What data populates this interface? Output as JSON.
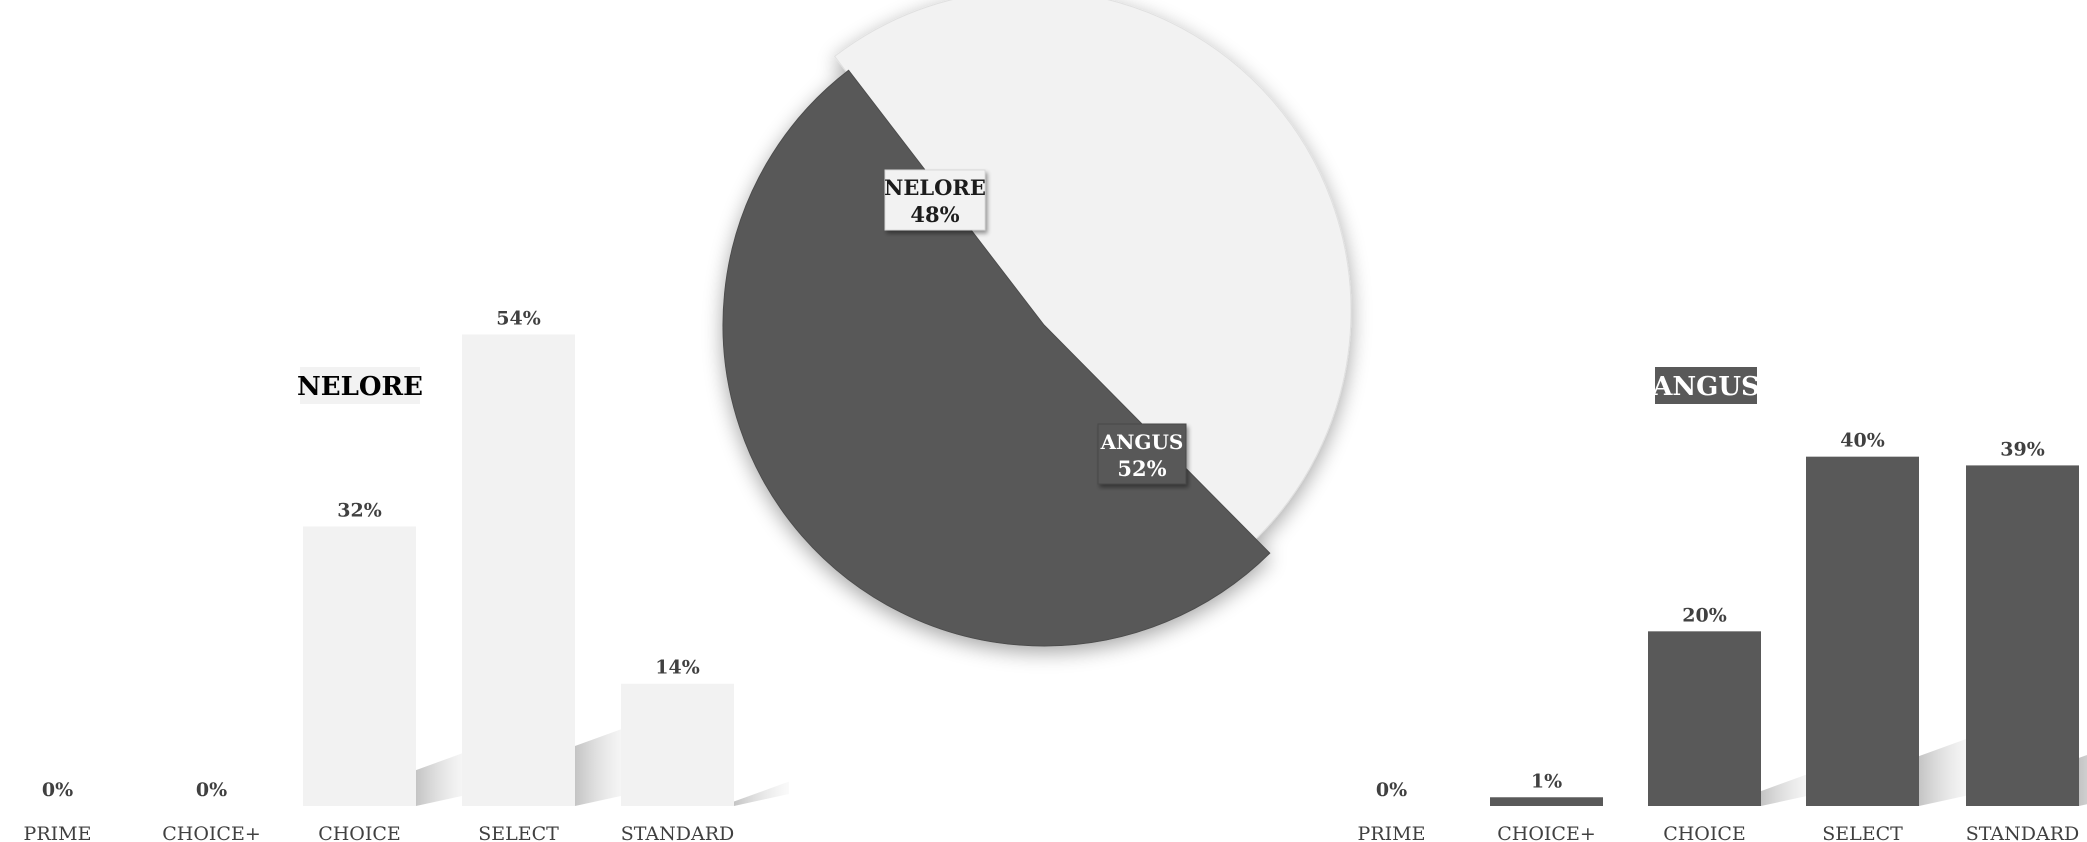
{
  "colors": {
    "nelore": "#f2f2f2",
    "angus": "#595959",
    "label_dark": "#404040",
    "shadow": "#c8c8c8"
  },
  "chart_data": [
    {
      "type": "pie",
      "title": "",
      "slices": [
        {
          "label": "NELORE",
          "value": 48,
          "value_label": "48%"
        },
        {
          "label": "ANGUS",
          "value": 52,
          "value_label": "52%"
        }
      ]
    },
    {
      "type": "bar",
      "title": "NELORE",
      "categories": [
        "PRIME",
        "CHOICE+",
        "CHOICE",
        "SELECT",
        "STANDARD"
      ],
      "values": [
        0,
        0,
        32,
        54,
        14
      ],
      "value_labels": [
        "0%",
        "0%",
        "32%",
        "54%",
        "14%"
      ],
      "ylim": [
        0,
        60
      ],
      "grid": false,
      "legend": "none"
    },
    {
      "type": "bar",
      "title": "ANGUS",
      "categories": [
        "PRIME",
        "CHOICE+",
        "CHOICE",
        "SELECT",
        "STANDARD"
      ],
      "values": [
        0,
        1,
        20,
        40,
        39
      ],
      "value_labels": [
        "0%",
        "1%",
        "20%",
        "40%",
        "39%"
      ],
      "ylim": [
        0,
        60
      ],
      "grid": false,
      "legend": "none"
    }
  ]
}
